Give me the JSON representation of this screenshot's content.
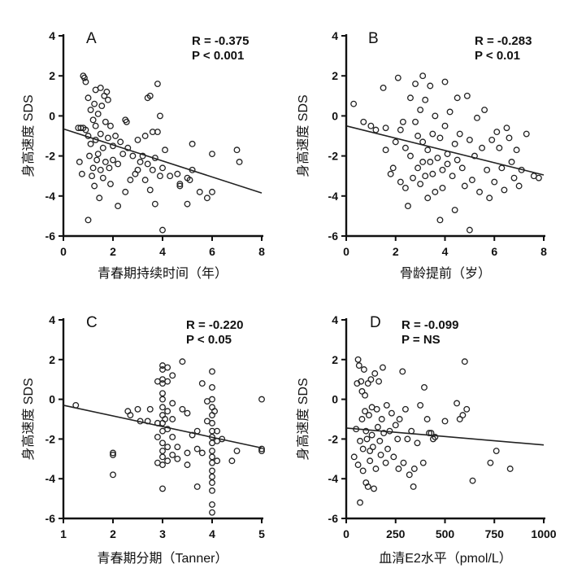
{
  "chart_data": [
    {
      "type": "scatter",
      "panel": "A",
      "stat_r": "R = -0.375",
      "stat_p": "P < 0.001",
      "xlabel": "青春期持续时间（年）",
      "ylabel": "身高速度 SDS",
      "xlim": [
        0,
        8
      ],
      "ylim": [
        -6,
        4
      ],
      "xticks": [
        0,
        2,
        4,
        6,
        8
      ],
      "yticks": [
        -6,
        -4,
        -2,
        0,
        2,
        4
      ],
      "regression": {
        "x": [
          0,
          8
        ],
        "y": [
          -0.65,
          -3.85
        ]
      },
      "points": [
        [
          0.6,
          -0.6
        ],
        [
          0.65,
          -2.3
        ],
        [
          0.7,
          -0.6
        ],
        [
          0.75,
          -2.9
        ],
        [
          0.8,
          -0.6
        ],
        [
          0.8,
          2.0
        ],
        [
          0.85,
          1.9
        ],
        [
          0.9,
          1.7
        ],
        [
          0.9,
          -0.7
        ],
        [
          1.0,
          0.9
        ],
        [
          1.0,
          -1.0
        ],
        [
          1.0,
          -5.2
        ],
        [
          1.05,
          -2.0
        ],
        [
          1.1,
          0.3
        ],
        [
          1.1,
          -1.4
        ],
        [
          1.15,
          -3.0
        ],
        [
          1.2,
          -0.2
        ],
        [
          1.2,
          -2.6
        ],
        [
          1.25,
          0.6
        ],
        [
          1.25,
          -3.5
        ],
        [
          1.3,
          1.3
        ],
        [
          1.3,
          -0.5
        ],
        [
          1.3,
          -1.2
        ],
        [
          1.35,
          -2.2
        ],
        [
          1.4,
          0.1
        ],
        [
          1.4,
          -1.9
        ],
        [
          1.45,
          -4.1
        ],
        [
          1.5,
          1.4
        ],
        [
          1.5,
          -0.9
        ],
        [
          1.5,
          -2.7
        ],
        [
          1.55,
          0.5
        ],
        [
          1.6,
          -1.6
        ],
        [
          1.6,
          -3.1
        ],
        [
          1.65,
          1.0
        ],
        [
          1.7,
          -0.3
        ],
        [
          1.7,
          -2.3
        ],
        [
          1.75,
          1.2
        ],
        [
          1.8,
          0.8
        ],
        [
          1.8,
          -1.1
        ],
        [
          1.85,
          -2.6
        ],
        [
          1.9,
          -0.5
        ],
        [
          1.9,
          -3.4
        ],
        [
          2.0,
          -2.2
        ],
        [
          2.0,
          -1.5
        ],
        [
          2.1,
          -1.0
        ],
        [
          2.2,
          -2.4
        ],
        [
          2.2,
          -4.5
        ],
        [
          2.3,
          -1.3
        ],
        [
          2.4,
          -1.9
        ],
        [
          2.5,
          -0.2
        ],
        [
          2.5,
          -3.8
        ],
        [
          2.55,
          -0.3
        ],
        [
          2.6,
          -1.6
        ],
        [
          2.7,
          -3.2
        ],
        [
          2.8,
          -2.0
        ],
        [
          2.9,
          -2.9
        ],
        [
          3.0,
          -1.2
        ],
        [
          3.0,
          -2.7
        ],
        [
          3.1,
          -2.3
        ],
        [
          3.2,
          -2.0
        ],
        [
          3.3,
          -1.0
        ],
        [
          3.3,
          -3.2
        ],
        [
          3.4,
          0.9
        ],
        [
          3.4,
          -2.4
        ],
        [
          3.5,
          1.0
        ],
        [
          3.5,
          -3.7
        ],
        [
          3.6,
          -0.8
        ],
        [
          3.6,
          -2.7
        ],
        [
          3.7,
          -2.1
        ],
        [
          3.7,
          -4.4
        ],
        [
          3.8,
          1.6
        ],
        [
          3.8,
          -0.8
        ],
        [
          3.9,
          0.0
        ],
        [
          3.9,
          -3.0
        ],
        [
          4.0,
          -5.7
        ],
        [
          4.0,
          -2.6
        ],
        [
          4.1,
          -1.7
        ],
        [
          4.3,
          -3.0
        ],
        [
          4.6,
          -2.9
        ],
        [
          4.7,
          -3.5
        ],
        [
          4.7,
          -3.4
        ],
        [
          5.0,
          -3.1
        ],
        [
          5.0,
          -4.4
        ],
        [
          5.1,
          -3.2
        ],
        [
          5.2,
          -2.7
        ],
        [
          5.2,
          -1.4
        ],
        [
          5.5,
          -3.8
        ],
        [
          5.8,
          -4.1
        ],
        [
          6.0,
          -3.8
        ],
        [
          6.0,
          -1.9
        ],
        [
          7.0,
          -1.7
        ],
        [
          7.1,
          -2.3
        ]
      ]
    },
    {
      "type": "scatter",
      "panel": "B",
      "stat_r": "R = -0.283",
      "stat_p": "P < 0.01",
      "xlabel": "骨龄提前（岁）",
      "ylabel": "身高速度 SDS",
      "xlim": [
        0,
        8
      ],
      "ylim": [
        -6,
        4
      ],
      "xticks": [
        0,
        2,
        4,
        6,
        8
      ],
      "yticks": [
        -6,
        -4,
        -2,
        0,
        2,
        4
      ],
      "regression": {
        "x": [
          0,
          8
        ],
        "y": [
          -0.5,
          -2.95
        ]
      },
      "points": [
        [
          0.3,
          0.6
        ],
        [
          0.7,
          -0.3
        ],
        [
          1.0,
          -0.5
        ],
        [
          1.2,
          -0.7
        ],
        [
          1.5,
          1.4
        ],
        [
          1.6,
          -0.6
        ],
        [
          1.6,
          -1.7
        ],
        [
          1.8,
          -2.9
        ],
        [
          1.9,
          -2.6
        ],
        [
          2.0,
          -1.3
        ],
        [
          2.1,
          1.9
        ],
        [
          2.2,
          -0.7
        ],
        [
          2.2,
          -3.3
        ],
        [
          2.3,
          -0.3
        ],
        [
          2.4,
          -1.6
        ],
        [
          2.4,
          -3.6
        ],
        [
          2.5,
          -4.5
        ],
        [
          2.6,
          0.9
        ],
        [
          2.6,
          -2.0
        ],
        [
          2.7,
          -3.1
        ],
        [
          2.8,
          -0.3
        ],
        [
          2.8,
          1.6
        ],
        [
          2.9,
          -1.0
        ],
        [
          2.9,
          -2.6
        ],
        [
          3.0,
          -3.4
        ],
        [
          3.0,
          0.3
        ],
        [
          3.1,
          2.0
        ],
        [
          3.1,
          -1.3
        ],
        [
          3.1,
          -2.3
        ],
        [
          3.2,
          0.8
        ],
        [
          3.2,
          -3.0
        ],
        [
          3.3,
          -4.1
        ],
        [
          3.3,
          -1.7
        ],
        [
          3.4,
          1.5
        ],
        [
          3.4,
          -2.3
        ],
        [
          3.5,
          -0.9
        ],
        [
          3.5,
          -2.9
        ],
        [
          3.6,
          -3.8
        ],
        [
          3.6,
          0.0
        ],
        [
          3.7,
          -2.1
        ],
        [
          3.8,
          -1.1
        ],
        [
          3.8,
          -5.2
        ],
        [
          3.9,
          -2.7
        ],
        [
          3.9,
          -3.6
        ],
        [
          4.0,
          1.7
        ],
        [
          4.0,
          -0.5
        ],
        [
          4.1,
          -2.4
        ],
        [
          4.1,
          -1.9
        ],
        [
          4.2,
          0.2
        ],
        [
          4.3,
          -3.0
        ],
        [
          4.4,
          -1.4
        ],
        [
          4.4,
          -4.7
        ],
        [
          4.5,
          0.9
        ],
        [
          4.5,
          -2.2
        ],
        [
          4.6,
          -0.9
        ],
        [
          4.7,
          -2.6
        ],
        [
          4.8,
          -3.5
        ],
        [
          4.9,
          1.0
        ],
        [
          5.0,
          -1.2
        ],
        [
          5.0,
          -5.7
        ],
        [
          5.1,
          -3.2
        ],
        [
          5.2,
          -2.0
        ],
        [
          5.3,
          -0.1
        ],
        [
          5.4,
          -3.8
        ],
        [
          5.5,
          -1.6
        ],
        [
          5.6,
          0.3
        ],
        [
          5.7,
          -2.7
        ],
        [
          5.8,
          -4.1
        ],
        [
          5.9,
          -1.2
        ],
        [
          6.0,
          -3.3
        ],
        [
          6.1,
          -0.8
        ],
        [
          6.2,
          -1.6
        ],
        [
          6.3,
          -2.6
        ],
        [
          6.4,
          -3.7
        ],
        [
          6.5,
          -0.6
        ],
        [
          6.6,
          -1.1
        ],
        [
          6.7,
          -2.3
        ],
        [
          6.8,
          -3.1
        ],
        [
          6.9,
          -1.7
        ],
        [
          7.0,
          -3.5
        ],
        [
          7.1,
          -2.7
        ],
        [
          7.3,
          -0.9
        ],
        [
          7.6,
          -3.0
        ],
        [
          7.8,
          -3.1
        ]
      ]
    },
    {
      "type": "scatter",
      "panel": "C",
      "stat_r": "R = -0.220",
      "stat_p": "P < 0.05",
      "xlabel": "青春期分期（Tanner）",
      "ylabel": "身高速度 SDS",
      "xlim": [
        1,
        5
      ],
      "ylim": [
        -6,
        4
      ],
      "xticks": [
        1,
        2,
        3,
        4,
        5
      ],
      "yticks": [
        -6,
        -4,
        -2,
        0,
        2,
        4
      ],
      "regression": {
        "x": [
          1,
          5
        ],
        "y": [
          -0.3,
          -2.45
        ]
      },
      "points": [
        [
          1.25,
          -0.3
        ],
        [
          2.0,
          -2.7
        ],
        [
          2.0,
          -2.8
        ],
        [
          2.0,
          -3.8
        ],
        [
          2.3,
          -0.6
        ],
        [
          2.35,
          -0.8
        ],
        [
          2.5,
          -0.5
        ],
        [
          2.55,
          -1.1
        ],
        [
          2.7,
          -1.1
        ],
        [
          2.75,
          -0.5
        ],
        [
          2.9,
          -1.2
        ],
        [
          2.9,
          -1.9
        ],
        [
          2.9,
          -3.2
        ],
        [
          2.9,
          0.9
        ],
        [
          3.0,
          1.7
        ],
        [
          3.0,
          1.5
        ],
        [
          3.0,
          1.0
        ],
        [
          3.0,
          0.8
        ],
        [
          3.0,
          0.3
        ],
        [
          3.0,
          0.0
        ],
        [
          3.0,
          -0.4
        ],
        [
          3.0,
          -0.8
        ],
        [
          3.0,
          -1.2
        ],
        [
          3.0,
          -1.6
        ],
        [
          3.0,
          -2.2
        ],
        [
          3.0,
          -2.6
        ],
        [
          3.0,
          -2.9
        ],
        [
          3.0,
          -3.3
        ],
        [
          3.0,
          -4.5
        ],
        [
          3.05,
          -1.0
        ],
        [
          3.1,
          1.6
        ],
        [
          3.1,
          0.9
        ],
        [
          3.1,
          -0.6
        ],
        [
          3.1,
          -1.5
        ],
        [
          3.1,
          -2.4
        ],
        [
          3.1,
          -3.1
        ],
        [
          3.2,
          1.2
        ],
        [
          3.2,
          -0.2
        ],
        [
          3.2,
          -1.0
        ],
        [
          3.2,
          -1.9
        ],
        [
          3.2,
          -2.8
        ],
        [
          3.3,
          -2.4
        ],
        [
          3.3,
          -3.0
        ],
        [
          3.4,
          1.9
        ],
        [
          3.4,
          -0.5
        ],
        [
          3.5,
          -0.7
        ],
        [
          3.5,
          -2.7
        ],
        [
          3.5,
          -3.3
        ],
        [
          3.6,
          -1.8
        ],
        [
          3.7,
          -1.6
        ],
        [
          3.7,
          -2.5
        ],
        [
          3.7,
          -4.4
        ],
        [
          3.8,
          0.8
        ],
        [
          3.8,
          -2.7
        ],
        [
          3.9,
          -0.1
        ],
        [
          3.9,
          -1.1
        ],
        [
          4.0,
          1.4
        ],
        [
          4.0,
          0.6
        ],
        [
          4.0,
          0.0
        ],
        [
          4.0,
          -0.4
        ],
        [
          4.0,
          -0.8
        ],
        [
          4.0,
          -1.2
        ],
        [
          4.0,
          -1.6
        ],
        [
          4.0,
          -1.9
        ],
        [
          4.0,
          -2.2
        ],
        [
          4.0,
          -2.6
        ],
        [
          4.0,
          -2.9
        ],
        [
          4.0,
          -3.2
        ],
        [
          4.0,
          -3.6
        ],
        [
          4.0,
          -3.9
        ],
        [
          4.0,
          -4.2
        ],
        [
          4.0,
          -4.6
        ],
        [
          4.0,
          -5.3
        ],
        [
          4.0,
          -5.7
        ],
        [
          4.05,
          -0.6
        ],
        [
          4.1,
          -1.6
        ],
        [
          4.1,
          -2.1
        ],
        [
          4.1,
          -3.1
        ],
        [
          4.2,
          -2.0
        ],
        [
          4.4,
          -3.1
        ],
        [
          4.5,
          -2.6
        ],
        [
          5.0,
          0.0
        ],
        [
          5.0,
          -2.5
        ],
        [
          5.0,
          -2.6
        ]
      ]
    },
    {
      "type": "scatter",
      "panel": "D",
      "stat_r": "R = -0.099",
      "stat_p": "P = NS",
      "xlabel": "血清E2水平（pmol/L）",
      "ylabel": "身高速度 SDS",
      "xlim": [
        0,
        1000
      ],
      "ylim": [
        -6,
        4
      ],
      "xticks": [
        0,
        250,
        500,
        750,
        1000
      ],
      "yticks": [
        -6,
        -4,
        -2,
        0,
        2,
        4
      ],
      "regression": {
        "x": [
          0,
          1000
        ],
        "y": [
          -1.45,
          -2.3
        ]
      },
      "points": [
        [
          40,
          -2.9
        ],
        [
          50,
          -1.5
        ],
        [
          55,
          0.8
        ],
        [
          60,
          2.0
        ],
        [
          60,
          -3.3
        ],
        [
          65,
          1.7
        ],
        [
          70,
          -2.1
        ],
        [
          70,
          -5.2
        ],
        [
          75,
          0.9
        ],
        [
          80,
          0.4
        ],
        [
          80,
          -1.0
        ],
        [
          85,
          -2.5
        ],
        [
          85,
          -3.6
        ],
        [
          90,
          1.5
        ],
        [
          95,
          0.2
        ],
        [
          95,
          -0.6
        ],
        [
          100,
          -1.6
        ],
        [
          100,
          -4.2
        ],
        [
          105,
          -2.0
        ],
        [
          110,
          -4.4
        ],
        [
          110,
          0.8
        ],
        [
          115,
          -0.8
        ],
        [
          120,
          -2.6
        ],
        [
          120,
          -3.1
        ],
        [
          125,
          1.0
        ],
        [
          130,
          -0.4
        ],
        [
          130,
          -1.8
        ],
        [
          135,
          -2.4
        ],
        [
          140,
          -4.5
        ],
        [
          145,
          1.3
        ],
        [
          150,
          -3.5
        ],
        [
          155,
          -0.5
        ],
        [
          160,
          -1.4
        ],
        [
          165,
          0.9
        ],
        [
          170,
          -2.1
        ],
        [
          175,
          -2.8
        ],
        [
          180,
          -1.0
        ],
        [
          185,
          1.6
        ],
        [
          190,
          -1.7
        ],
        [
          200,
          -3.2
        ],
        [
          205,
          -0.3
        ],
        [
          210,
          -2.5
        ],
        [
          220,
          -1.6
        ],
        [
          230,
          -0.7
        ],
        [
          240,
          -2.9
        ],
        [
          250,
          -1.3
        ],
        [
          260,
          -2.0
        ],
        [
          265,
          -3.5
        ],
        [
          270,
          -1.0
        ],
        [
          285,
          1.4
        ],
        [
          290,
          -3.2
        ],
        [
          300,
          -0.5
        ],
        [
          310,
          -2.0
        ],
        [
          320,
          -3.8
        ],
        [
          330,
          -1.6
        ],
        [
          340,
          -4.4
        ],
        [
          345,
          -3.5
        ],
        [
          360,
          -2.2
        ],
        [
          375,
          -0.3
        ],
        [
          390,
          -3.2
        ],
        [
          395,
          0.6
        ],
        [
          410,
          -1.0
        ],
        [
          420,
          -1.7
        ],
        [
          430,
          -1.7
        ],
        [
          440,
          -2.0
        ],
        [
          450,
          -1.9
        ],
        [
          500,
          -1.1
        ],
        [
          560,
          -0.2
        ],
        [
          575,
          -1.0
        ],
        [
          590,
          -0.8
        ],
        [
          600,
          1.9
        ],
        [
          610,
          -0.5
        ],
        [
          640,
          -4.1
        ],
        [
          730,
          -3.2
        ],
        [
          760,
          -2.6
        ],
        [
          830,
          -3.5
        ]
      ]
    }
  ]
}
